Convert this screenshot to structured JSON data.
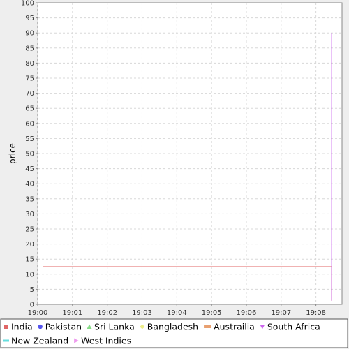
{
  "chart_data": {
    "type": "line",
    "xlabel": "",
    "ylabel": "price",
    "ylim": [
      0,
      100
    ],
    "y_ticks": [
      0,
      5,
      10,
      15,
      20,
      25,
      30,
      35,
      40,
      45,
      50,
      55,
      60,
      65,
      70,
      75,
      80,
      85,
      90,
      95,
      100
    ],
    "x_ticks": [
      "19:00",
      "19:01",
      "19:02",
      "19:03",
      "19:04",
      "19:05",
      "19:06",
      "19:07",
      "19:08"
    ],
    "xlim": [
      "19:00",
      "19:08.75"
    ],
    "grid": true,
    "legend_position": "bottom",
    "series": [
      {
        "name": "India",
        "color": "#e06666",
        "marker": "square",
        "points": [
          {
            "x": "19:00.15",
            "y": 12.5
          },
          {
            "x": "19:08.45",
            "y": 12.5
          },
          {
            "x": "19:08.45",
            "y": 1.2
          }
        ]
      },
      {
        "name": "Pakistan",
        "color": "#5555ee",
        "marker": "circle",
        "points": []
      },
      {
        "name": "Sri Lanka",
        "color": "#88dd88",
        "marker": "triangle-up",
        "points": []
      },
      {
        "name": "Bangladesh",
        "color": "#eeee88",
        "marker": "diamond",
        "points": []
      },
      {
        "name": "Austrailia",
        "color": "#e8a070",
        "marker": "rect-wide",
        "points": []
      },
      {
        "name": "South Africa",
        "color": "#cc66ee",
        "marker": "triangle-down",
        "points": [
          {
            "x": "19:08.45",
            "y": 1.2
          },
          {
            "x": "19:08.45",
            "y": 90
          }
        ]
      },
      {
        "name": "New Zealand",
        "color": "#66dddd",
        "marker": "rect-thin",
        "points": []
      },
      {
        "name": "West Indies",
        "color": "#ee99ee",
        "marker": "triangle-right",
        "points": []
      }
    ]
  }
}
